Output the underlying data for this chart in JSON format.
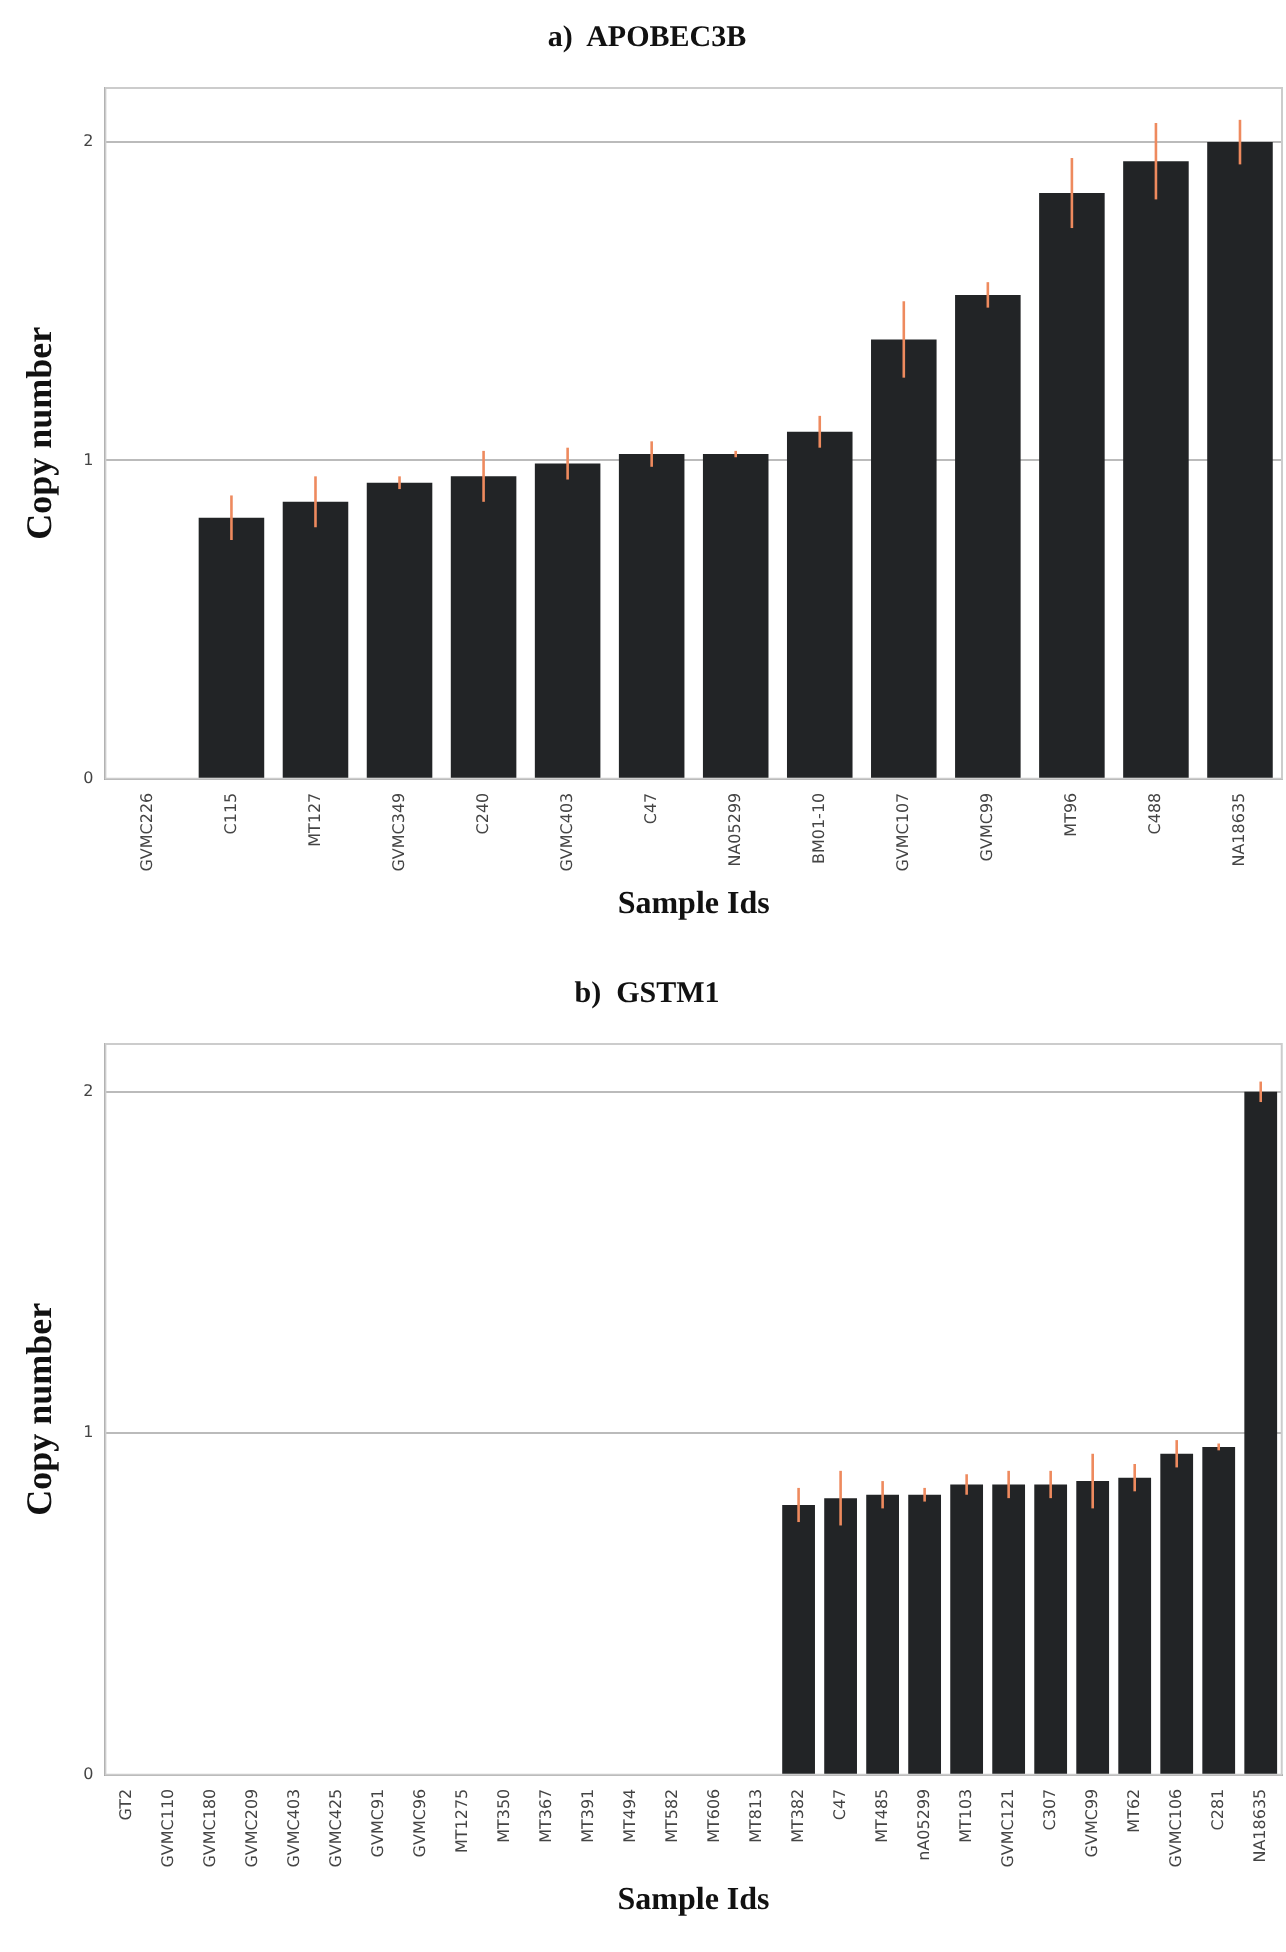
{
  "chart_data": [
    {
      "type": "bar",
      "title": "a)  APOBEC3B",
      "xlabel": "Sample Ids",
      "ylabel": "Copy number",
      "categories": [
        "GVMC226",
        "C115",
        "MT127",
        "GVMC349",
        "C240",
        "GVMC403",
        "C47",
        "NA05299",
        "BM01-10",
        "GVMC107",
        "GVMC99",
        "MT96",
        "C488",
        "NA18635"
      ],
      "values": [
        0,
        0.82,
        0.87,
        0.93,
        0.95,
        0.99,
        1.02,
        1.02,
        1.09,
        1.38,
        1.52,
        1.84,
        1.94,
        2.0
      ],
      "errors": [
        null,
        0.07,
        0.08,
        0.02,
        0.08,
        0.05,
        0.04,
        0.01,
        0.05,
        0.12,
        0.04,
        0.11,
        0.12,
        0.07
      ],
      "color": "#222426",
      "ylim": [
        0,
        2.17
      ],
      "yticks": [
        0,
        1,
        2
      ],
      "grid": "y"
    },
    {
      "type": "bar",
      "title": "b)  GSTM1",
      "xlabel": "Sample Ids",
      "ylabel": "Copy number",
      "categories": [
        "GT2",
        "GVMC110",
        "GVMC180",
        "GVMC209",
        "GVMC403",
        "GVMC425",
        "GVMC91",
        "GVMC96",
        "MT1275",
        "MT350",
        "MT367",
        "MT391",
        "MT494",
        "MT582",
        "MT606",
        "MT813",
        "MT382",
        "C47",
        "MT485",
        "nA05299",
        "MT103",
        "GVMC121",
        "C307",
        "GVMC99",
        "MT62",
        "GVMC106",
        "C281",
        "NA18635"
      ],
      "values": [
        0,
        0,
        0,
        0,
        0,
        0,
        0,
        0,
        0,
        0,
        0,
        0,
        0,
        0,
        0,
        0,
        0.79,
        0.81,
        0.82,
        0.82,
        0.85,
        0.85,
        0.85,
        0.86,
        0.87,
        0.94,
        0.96,
        2.0
      ],
      "errors": [
        null,
        null,
        null,
        null,
        null,
        null,
        null,
        null,
        null,
        null,
        null,
        null,
        null,
        null,
        null,
        null,
        0.05,
        0.08,
        0.04,
        0.02,
        0.03,
        0.04,
        0.04,
        0.08,
        0.04,
        0.04,
        0.01,
        0.03
      ],
      "color": "#222426",
      "ylim": [
        0,
        2.14
      ],
      "yticks": [
        0,
        1,
        2
      ],
      "grid": "y"
    }
  ]
}
